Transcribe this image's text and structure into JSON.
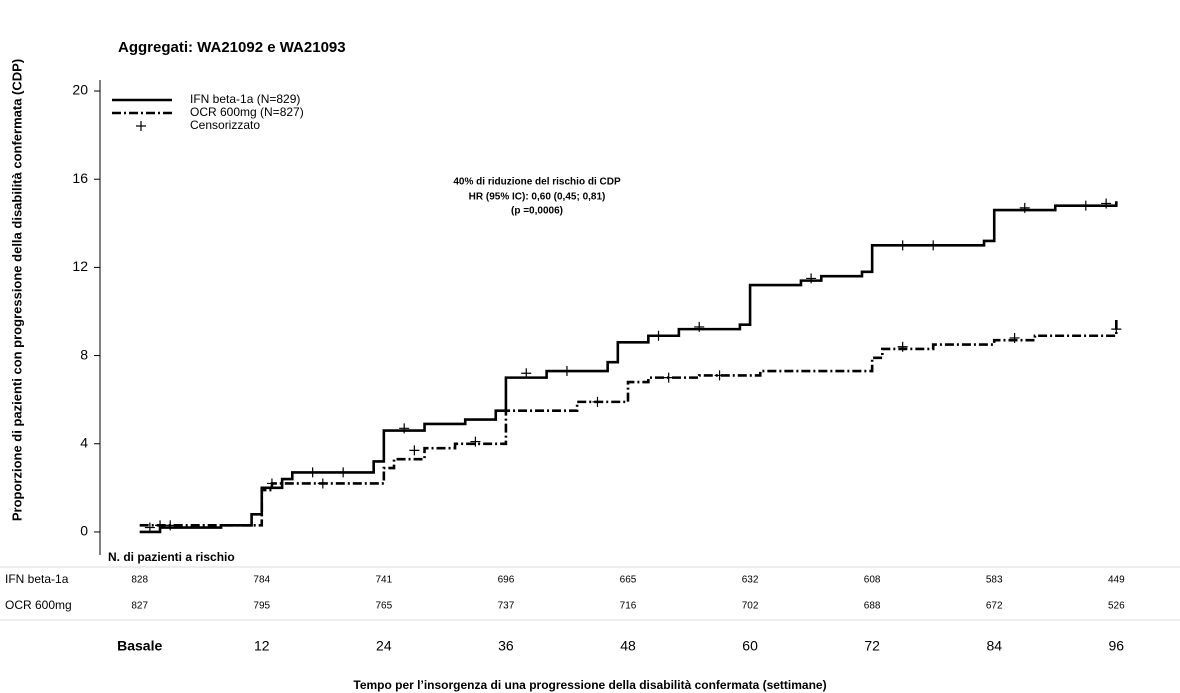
{
  "chart_data": {
    "type": "line",
    "title": "Aggregati: WA21092 e WA21093",
    "y_label": "Proporzione di pazienti con progressione della disabilità confermata (CDP)",
    "x_label": "Tempo per l’insorgenza di una progressione della disabilità confermata (settimane)",
    "annotation": [
      "40% di riduzione del rischio di CDP",
      "HR (95% IC): 0,60 (0,45; 0,81)",
      "(p =0,0006)"
    ],
    "xlim": [
      -4,
      100
    ],
    "ylim": [
      -1,
      20.5
    ],
    "xticks": [
      {
        "value": 0,
        "label": "Basale"
      },
      12,
      24,
      36,
      48,
      60,
      72,
      84,
      96
    ],
    "yticks": [
      0,
      4,
      8,
      12,
      16,
      20
    ],
    "series": [
      {
        "name": "IFN beta-1a  (N=829)",
        "color": "#000000",
        "style": "solid",
        "x": [
          0,
          2,
          2,
          8,
          8,
          11,
          11,
          12,
          12,
          14,
          14,
          15,
          15,
          23,
          23,
          24,
          24,
          28,
          28,
          32,
          32,
          35,
          35,
          36,
          36,
          40,
          40,
          46,
          46,
          47,
          47,
          50,
          50,
          53,
          53,
          59,
          59,
          60,
          60,
          65,
          65,
          67,
          67,
          71,
          71,
          72,
          72,
          83,
          83,
          84,
          84,
          90,
          90,
          96,
          96
        ],
        "values": [
          0,
          0,
          0.2,
          0.2,
          0.3,
          0.3,
          0.8,
          0.8,
          2.0,
          2.0,
          2.4,
          2.4,
          2.7,
          2.7,
          3.2,
          3.2,
          4.6,
          4.6,
          4.9,
          4.9,
          5.1,
          5.1,
          5.5,
          5.5,
          7.0,
          7.0,
          7.3,
          7.3,
          7.7,
          7.7,
          8.6,
          8.6,
          8.9,
          8.9,
          9.2,
          9.2,
          9.4,
          9.4,
          11.2,
          11.2,
          11.4,
          11.4,
          11.6,
          11.6,
          11.8,
          11.8,
          13.0,
          13.0,
          13.2,
          13.2,
          14.6,
          14.6,
          14.8,
          14.8,
          15.0
        ]
      },
      {
        "name": "OCR 600mg  (N=827)",
        "color": "#000000",
        "style": "dashdot",
        "x": [
          0,
          12,
          12,
          13,
          13,
          24,
          24,
          25,
          25,
          28,
          28,
          31,
          31,
          36,
          36,
          43,
          43,
          48,
          48,
          50,
          50,
          55,
          55,
          61,
          61,
          72,
          72,
          73,
          73,
          78,
          78,
          84,
          84,
          88,
          88,
          96,
          96
        ],
        "values": [
          0.3,
          0.3,
          1.9,
          1.9,
          2.2,
          2.2,
          2.9,
          2.9,
          3.3,
          3.3,
          3.8,
          3.8,
          4.0,
          4.0,
          5.5,
          5.5,
          5.9,
          5.9,
          6.8,
          6.8,
          7.0,
          7.0,
          7.1,
          7.1,
          7.3,
          7.3,
          7.9,
          7.9,
          8.3,
          8.3,
          8.5,
          8.5,
          8.7,
          8.7,
          8.9,
          8.9,
          9.7
        ]
      },
      {
        "name": "Censorizzato",
        "color": "#000000",
        "style": "censor",
        "x": [
          1,
          3,
          13,
          17,
          20,
          26,
          38,
          42,
          51,
          55,
          66,
          75,
          78,
          87,
          93,
          95,
          2,
          18,
          27,
          33,
          45,
          52,
          57,
          75,
          86,
          96
        ],
        "values": [
          0.2,
          0.3,
          2.2,
          2.7,
          2.7,
          4.7,
          7.2,
          7.3,
          8.9,
          9.3,
          11.5,
          13.0,
          13.0,
          14.7,
          14.8,
          14.9,
          0.3,
          2.2,
          3.7,
          4.1,
          5.9,
          7.0,
          7.1,
          8.4,
          8.8,
          9.2
        ]
      }
    ],
    "at_risk": {
      "title": "N. di pazienti a rischio",
      "rows": [
        {
          "name": "IFN beta-1a",
          "values": [
            828,
            784,
            741,
            696,
            665,
            632,
            608,
            583,
            449
          ]
        },
        {
          "name": "OCR 600mg",
          "values": [
            827,
            795,
            765,
            737,
            716,
            702,
            688,
            672,
            526
          ]
        }
      ]
    }
  }
}
